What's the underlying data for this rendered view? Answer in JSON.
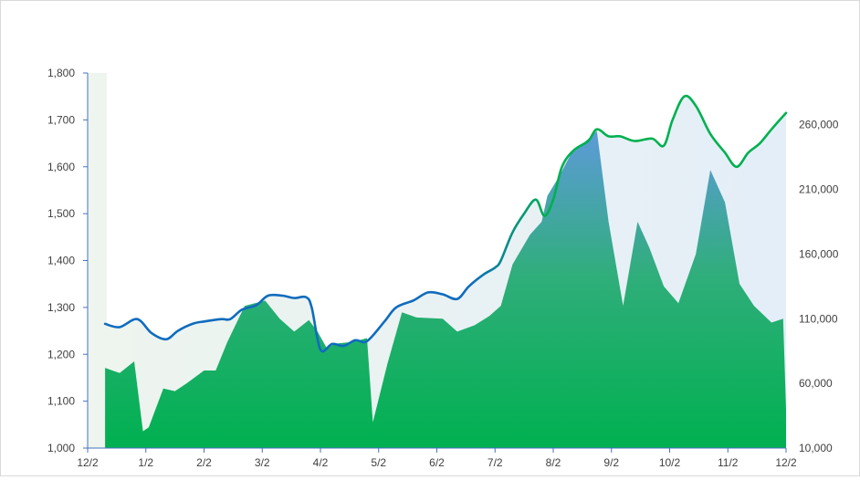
{
  "chart_data": {
    "type": "area",
    "x_labels": [
      "12/2",
      "1/2",
      "2/2",
      "3/2",
      "4/2",
      "5/2",
      "6/2",
      "7/2",
      "8/2",
      "9/2",
      "10/2",
      "11/2",
      "12/2"
    ],
    "y_left": {
      "ticks": [
        "1,000",
        "1,100",
        "1,200",
        "1,300",
        "1,400",
        "1,500",
        "1,600",
        "1,700",
        "1,800"
      ],
      "ylim": [
        1000,
        1800
      ]
    },
    "y_right": {
      "ticks": [
        "10,000",
        "60,000",
        "110,000",
        "160,000",
        "210,000",
        "260,000"
      ],
      "ylim": [
        10000,
        300000
      ]
    },
    "series": [
      {
        "kind": "line",
        "axis": "left",
        "color_start": "#0f6cbd",
        "color_end": "#00b050",
        "x": [
          0.3,
          0.55,
          0.85,
          1.1,
          1.35,
          1.55,
          1.8,
          2.0,
          2.3,
          2.45,
          2.65,
          2.9,
          3.1,
          3.35,
          3.55,
          3.75,
          3.85,
          4.0,
          4.2,
          4.4,
          4.6,
          4.8,
          5.1,
          5.3,
          5.6,
          5.85,
          6.1,
          6.35,
          6.55,
          6.8,
          7.0,
          7.1,
          7.3,
          7.5,
          7.7,
          7.85,
          8.0,
          8.15,
          8.35,
          8.6,
          8.75,
          8.95,
          9.15,
          9.4,
          9.7,
          9.9,
          10.05,
          10.25,
          10.45,
          10.7,
          10.95,
          11.15,
          11.35,
          11.55,
          11.75,
          12.0
        ],
        "y": [
          1265,
          1258,
          1275,
          1245,
          1232,
          1250,
          1265,
          1270,
          1275,
          1275,
          1295,
          1305,
          1325,
          1325,
          1320,
          1322,
          1300,
          1210,
          1222,
          1218,
          1230,
          1228,
          1270,
          1300,
          1315,
          1332,
          1328,
          1318,
          1345,
          1370,
          1385,
          1400,
          1460,
          1500,
          1530,
          1495,
          1530,
          1600,
          1635,
          1655,
          1680,
          1665,
          1665,
          1655,
          1660,
          1645,
          1700,
          1750,
          1730,
          1670,
          1630,
          1600,
          1630,
          1650,
          1680,
          1715
        ]
      },
      {
        "kind": "area",
        "axis": "right",
        "color": "#00b050",
        "x": [
          0.3,
          0.55,
          0.8,
          0.95,
          1.05,
          1.3,
          1.5,
          1.7,
          2.0,
          2.2,
          2.4,
          2.7,
          3.05,
          3.3,
          3.55,
          3.8,
          3.95,
          4.1,
          4.3,
          4.55,
          4.8,
          4.9,
          5.15,
          5.4,
          5.65,
          6.1,
          6.35,
          6.65,
          6.9,
          7.1,
          7.3,
          7.6,
          7.8,
          7.9,
          8.1,
          8.3,
          8.5,
          8.75,
          8.95,
          9.2,
          9.45,
          9.65,
          9.9,
          10.15,
          10.45,
          10.7,
          10.95,
          11.2,
          11.45,
          11.75,
          11.95,
          12.0
        ],
        "y": [
          72000,
          68000,
          77000,
          23000,
          26000,
          56000,
          54000,
          60000,
          70000,
          70000,
          92000,
          120000,
          124000,
          110000,
          100000,
          109000,
          100000,
          88000,
          91000,
          92000,
          95000,
          30000,
          75000,
          115000,
          111000,
          110000,
          100000,
          105000,
          112000,
          120000,
          152000,
          175000,
          185000,
          205000,
          220000,
          237000,
          245000,
          255000,
          185000,
          120000,
          185000,
          165000,
          135000,
          122000,
          160000,
          225000,
          200000,
          137000,
          120000,
          107000,
          110000,
          40000
        ]
      }
    ]
  }
}
